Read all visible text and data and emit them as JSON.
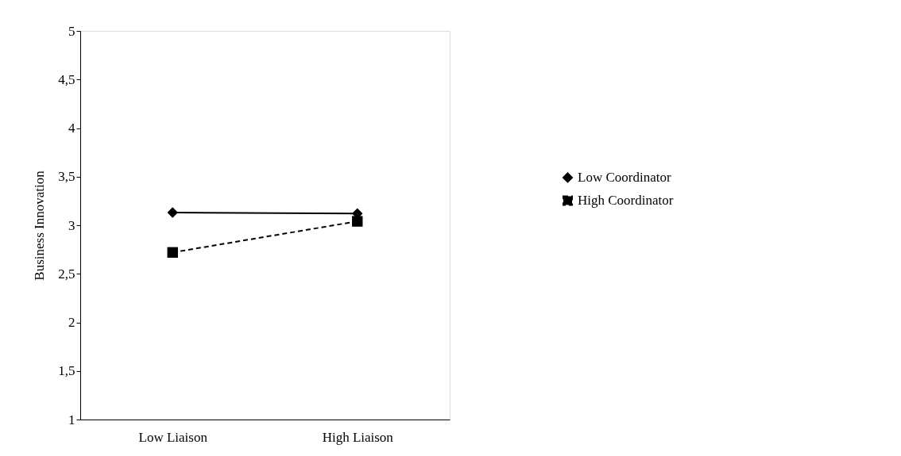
{
  "chart_data": {
    "type": "line",
    "ylabel": "Business Innovation",
    "categories": [
      "Low Liaison",
      "High Liaison"
    ],
    "series": [
      {
        "name": "Low Coordinator",
        "color": "#000000",
        "values": [
          3.13,
          3.12
        ],
        "marker": "diamond",
        "line_style": "solid"
      },
      {
        "name": "High Coordinator",
        "color": "#000000",
        "values": [
          2.72,
          3.04
        ],
        "marker": "square",
        "line_style": "dashed"
      }
    ],
    "ylim": [
      1,
      5
    ],
    "yticks": [
      {
        "value": 1,
        "label": "1"
      },
      {
        "value": 1.5,
        "label": "1,5"
      },
      {
        "value": 2,
        "label": "2"
      },
      {
        "value": 2.5,
        "label": "2,5"
      },
      {
        "value": 3,
        "label": "3"
      },
      {
        "value": 3.5,
        "label": "3,5"
      },
      {
        "value": 4,
        "label": "4"
      },
      {
        "value": 4.5,
        "label": "4,5"
      },
      {
        "value": 5,
        "label": "5"
      }
    ],
    "grid": false,
    "legend": "right"
  }
}
